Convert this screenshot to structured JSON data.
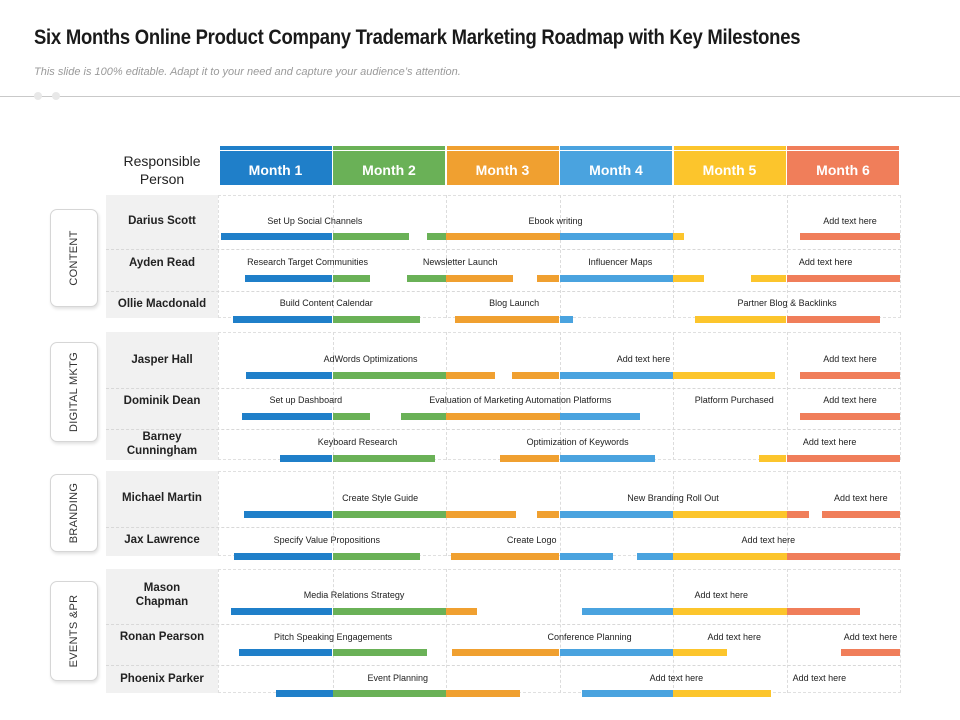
{
  "title": "Six Months Online Product Company Trademark Marketing Roadmap with Key Milestones",
  "subtitle": "This slide is 100% editable. Adapt it to your need and capture your audience’s attention.",
  "responsible_header": "Responsible\nPerson",
  "months": [
    {
      "label": "Month 1",
      "color": "#1f7fc9"
    },
    {
      "label": "Month 2",
      "color": "#6ab157"
    },
    {
      "label": "Month 3",
      "color": "#f0a030"
    },
    {
      "label": "Month 4",
      "color": "#4aa3df"
    },
    {
      "label": "Month 5",
      "color": "#fcc52c"
    },
    {
      "label": "Month 6",
      "color": "#f07e5a"
    }
  ],
  "groups": [
    {
      "label": "CONTENT",
      "people": [
        {
          "name": "Darius Scott",
          "tasks": [
            {
              "label": "Set Up Social Channels",
              "start": 0.02,
              "end": 1.67
            },
            {
              "label": "Ebook writing",
              "start": 1.83,
              "end": 4.1
            },
            {
              "label": "Add text here",
              "start": 5.12,
              "end": 6.0
            }
          ]
        },
        {
          "name": "Ayden Read",
          "tasks": [
            {
              "label": "Research Target Communities",
              "start": 0.23,
              "end": 1.33
            },
            {
              "label": "Newsletter Launch",
              "start": 1.66,
              "end": 2.59
            },
            {
              "label": "Influencer Maps",
              "start": 2.8,
              "end": 4.27
            },
            {
              "label": "Add text here",
              "start": 4.69,
              "end": 6.0
            }
          ]
        },
        {
          "name": "Ollie Macdonald",
          "tasks": [
            {
              "label": "Build Content Calendar",
              "start": 0.12,
              "end": 1.77
            },
            {
              "label": "Blog Launch",
              "start": 2.08,
              "end": 3.12
            },
            {
              "label": "Partner Blog & Backlinks",
              "start": 4.19,
              "end": 5.82
            }
          ]
        }
      ]
    },
    {
      "label": "DIGITAL MKTG",
      "people": [
        {
          "name": "Jasper Hall",
          "tasks": [
            {
              "label": "AdWords Optimizations",
              "start": 0.24,
              "end": 2.43
            },
            {
              "label": "Add text here",
              "start": 2.58,
              "end": 4.9
            },
            {
              "label": "Add text here",
              "start": 5.12,
              "end": 6.0
            }
          ]
        },
        {
          "name": "Dominik Dean",
          "tasks": [
            {
              "label": "Set up Dashboard",
              "start": 0.2,
              "end": 1.33
            },
            {
              "label": "Evaluation of Marketing Automation Platforms",
              "start": 1.6,
              "end": 3.71
            },
            {
              "label": "Platform Purchased",
              "start": 4.54,
              "end": 4.54
            },
            {
              "label": "Add text here",
              "start": 5.12,
              "end": 6.0
            }
          ]
        },
        {
          "name": "Barney\nCunningham",
          "tasks": [
            {
              "label": "Keyboard Research",
              "start": 0.54,
              "end": 1.9
            },
            {
              "label": "Optimization of Keywords",
              "start": 2.48,
              "end": 3.84
            },
            {
              "label": "Add text here",
              "start": 4.76,
              "end": 6.0
            }
          ]
        }
      ]
    },
    {
      "label": "BRANDING",
      "people": [
        {
          "name": "Michael Martin",
          "tasks": [
            {
              "label": "Create Style Guide",
              "start": 0.22,
              "end": 2.62
            },
            {
              "label": "New Branding Roll Out",
              "start": 2.8,
              "end": 5.2
            },
            {
              "label": "Add text here",
              "start": 5.31,
              "end": 6.0
            }
          ]
        },
        {
          "name": "Jax Lawrence",
          "tasks": [
            {
              "label": "Specify Value Propositions",
              "start": 0.13,
              "end": 1.77
            },
            {
              "label": "Create Logo",
              "start": 2.04,
              "end": 3.47
            },
            {
              "label": "Add text here",
              "start": 3.68,
              "end": 6.0
            }
          ]
        }
      ]
    },
    {
      "label": "EVENTS &PR",
      "people": [
        {
          "name": "Mason\nChapman",
          "tasks": [
            {
              "label": "Media Relations Strategy",
              "start": 0.11,
              "end": 2.27
            },
            {
              "label": "Add text here",
              "start": 3.2,
              "end": 5.65
            }
          ]
        },
        {
          "name": "Ronan Pearson",
          "tasks": [
            {
              "label": "Pitch Speaking Engagements",
              "start": 0.18,
              "end": 1.83
            },
            {
              "label": "Conference Planning",
              "start": 2.05,
              "end": 4.48
            },
            {
              "label": "Add text here",
              "start": 4.54,
              "end": 4.54
            },
            {
              "label": "Add text here",
              "start": 5.48,
              "end": 6.0
            }
          ]
        },
        {
          "name": "Phoenix Parker",
          "tasks": [
            {
              "label": "Event Planning",
              "start": 0.5,
              "end": 2.65
            },
            {
              "label": "Add text here",
              "start": 3.2,
              "end": 4.86
            },
            {
              "label": "Add text here",
              "start": 5.29,
              "end": 5.29
            }
          ]
        }
      ]
    }
  ]
}
